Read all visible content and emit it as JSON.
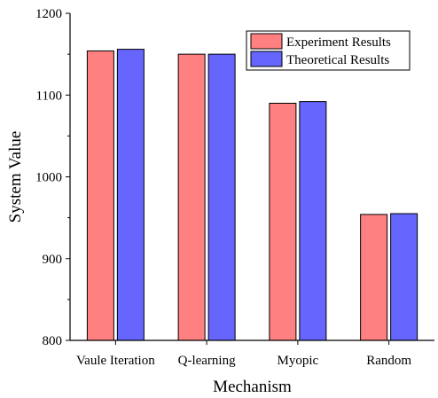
{
  "chart_data": {
    "type": "bar",
    "xlabel": "Mechanism",
    "ylabel": "System Value",
    "ylim": [
      800,
      1200
    ],
    "yticks": [
      "800",
      "900",
      "1000",
      "1100",
      "1200"
    ],
    "categories": [
      "Vaule Iteration",
      "Q-learning",
      "Myopic",
      "Random"
    ],
    "series": [
      {
        "name": "Experiment Results",
        "values": [
          1154,
          1150,
          1090,
          954
        ],
        "color": "#ff8080"
      },
      {
        "name": "Theoretical Results",
        "values": [
          1156,
          1150,
          1092,
          955
        ],
        "color": "#6666ff"
      }
    ],
    "grid": false,
    "legend_position": "top-right"
  }
}
